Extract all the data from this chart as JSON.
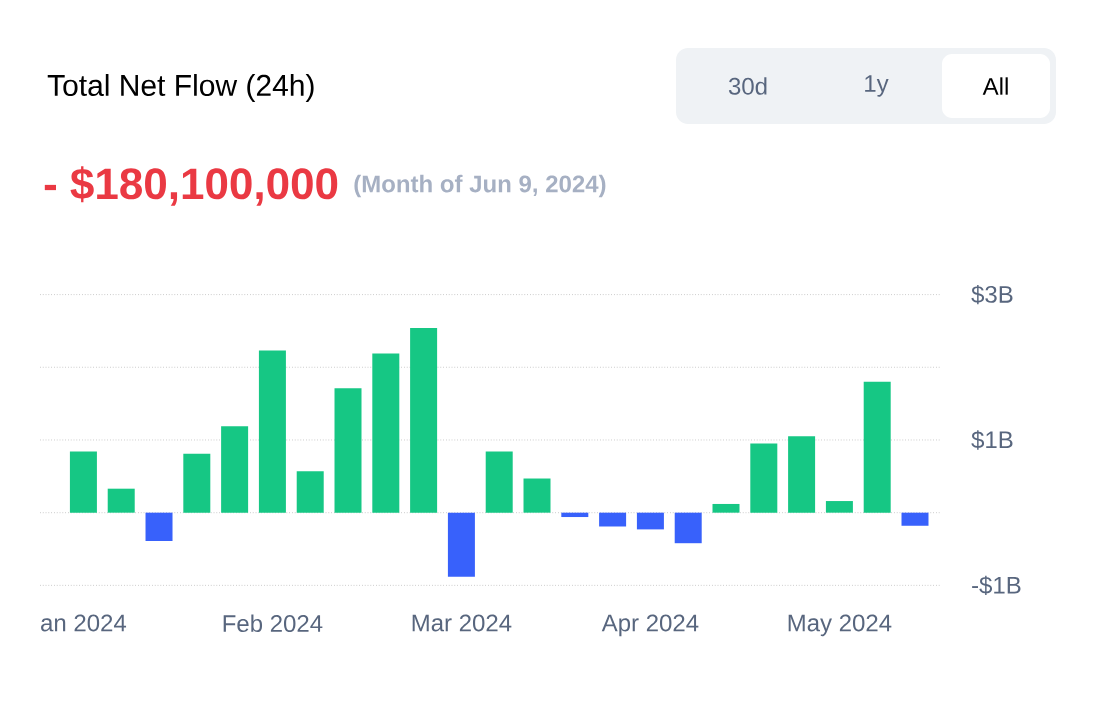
{
  "chart_data": {
    "type": "bar",
    "title": "Total Net Flow (24h)",
    "subtitle": "- $180,100,000",
    "annotations": [
      "(Month of Jun 9, 2024)",
      "30d",
      "1y",
      "All"
    ],
    "categories": [
      "an 2024",
      null,
      null,
      null,
      null,
      "Feb 2024",
      null,
      null,
      null,
      null,
      "Mar 2024",
      null,
      null,
      null,
      null,
      "Apr 2024",
      null,
      null,
      null,
      null,
      "May 2024",
      null,
      null
    ],
    "values": [
      0.84,
      0.33,
      -0.39,
      0.81,
      1.19,
      2.23,
      0.57,
      1.71,
      2.19,
      2.54,
      -0.88,
      0.84,
      0.47,
      -0.06,
      -0.19,
      -0.23,
      -0.42,
      0.12,
      0.95,
      1.05,
      0.16,
      1.8,
      -0.18
    ],
    "colors": [
      "#16c784",
      "#16c784",
      "#3861fb",
      "#16c784",
      "#16c784",
      "#16c784",
      "#16c784",
      "#16c784",
      "#16c784",
      "#16c784",
      "#3861fb",
      "#16c784",
      "#16c784",
      "#3861fb",
      "#3861fb",
      "#3861fb",
      "#3861fb",
      "#16c784",
      "#16c784",
      "#16c784",
      "#16c784",
      "#16c784",
      "#3861fb"
    ],
    "ylim": [
      -1,
      3
    ],
    "yticks": [
      {
        "value": -1,
        "label": "-$1B"
      },
      {
        "value": 0,
        "label": null
      },
      {
        "value": 1,
        "label": "$1B"
      },
      {
        "value": 2,
        "label": null
      },
      {
        "value": 3,
        "label": "$3B"
      }
    ],
    "grid": "y"
  }
}
